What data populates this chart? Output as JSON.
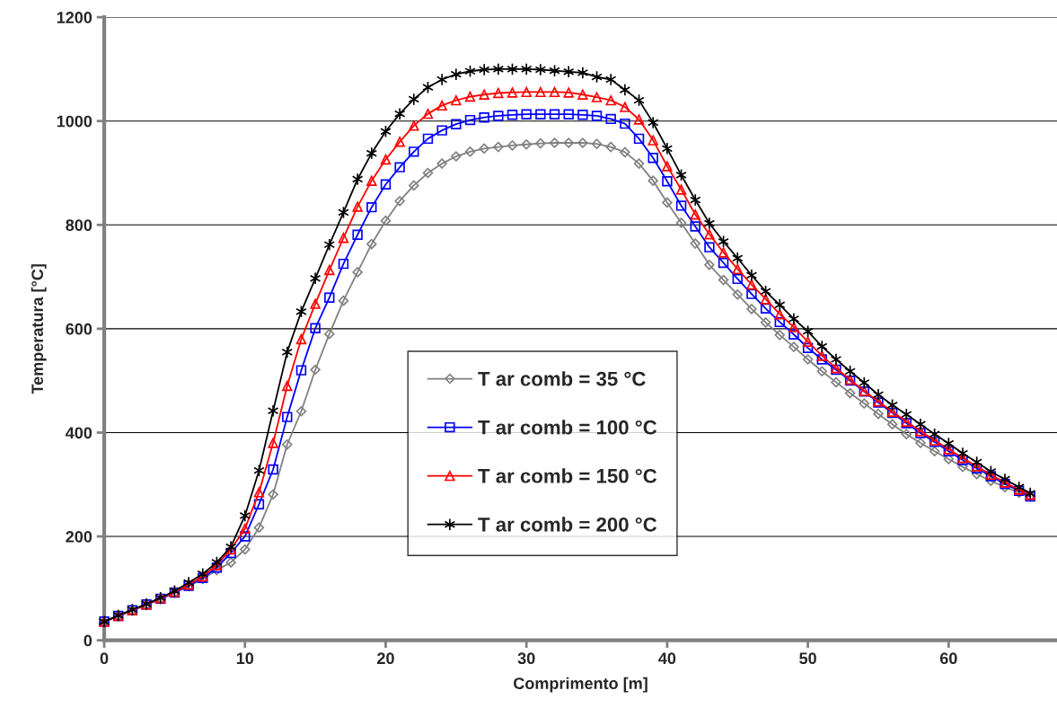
{
  "chart_data": {
    "type": "line",
    "xlabel": "Comprimento [m]",
    "ylabel": "Temperatura [°C]",
    "x": [
      0,
      1,
      2,
      3,
      4,
      5,
      6,
      7,
      8,
      9,
      10,
      11,
      12,
      13,
      14,
      15,
      16,
      17,
      18,
      19,
      20,
      21,
      22,
      23,
      24,
      25,
      26,
      27,
      28,
      29,
      30,
      31,
      32,
      33,
      34,
      35,
      36,
      37,
      38,
      39,
      40,
      41,
      42,
      43,
      44,
      45,
      46,
      47,
      48,
      49,
      50,
      51,
      52,
      53,
      54,
      55,
      56,
      57,
      58,
      59,
      60,
      61,
      62,
      63,
      64,
      65,
      65.8
    ],
    "series": [
      {
        "name": "T ar comb = 35 °C",
        "color": "#808080",
        "marker": "diamond",
        "values": [
          35,
          47,
          57,
          68,
          79,
          91,
          104,
          118,
          135,
          150,
          175,
          217,
          281,
          377,
          441,
          521,
          590,
          654,
          709,
          763,
          808,
          846,
          876,
          900,
          918,
          932,
          941,
          947,
          950,
          953,
          955,
          957,
          958,
          958,
          958,
          956,
          950,
          940,
          918,
          885,
          843,
          804,
          764,
          723,
          694,
          666,
          638,
          612,
          588,
          565,
          541,
          518,
          497,
          476,
          456,
          436,
          416,
          397,
          380,
          364,
          349,
          334,
          320,
          307,
          295,
          284,
          277
        ]
      },
      {
        "name": "T ar comb = 100 °C",
        "color": "#0000ff",
        "marker": "square",
        "values": [
          36,
          47,
          58,
          69,
          80,
          92,
          105,
          120,
          140,
          168,
          200,
          262,
          329,
          430,
          520,
          601,
          660,
          725,
          781,
          834,
          878,
          911,
          941,
          966,
          982,
          994,
          1002,
          1007,
          1010,
          1012,
          1013,
          1013,
          1013,
          1013,
          1012,
          1010,
          1004,
          995,
          966,
          929,
          884,
          837,
          797,
          757,
          727,
          696,
          667,
          639,
          613,
          589,
          563,
          541,
          521,
          500,
          479,
          458,
          438,
          418,
          399,
          382,
          364,
          347,
          331,
          316,
          301,
          288,
          277
        ]
      },
      {
        "name": "T ar comb = 150 °C",
        "color": "#ff0000",
        "marker": "triangle",
        "values": [
          36,
          47,
          58,
          69,
          81,
          93,
          107,
          123,
          145,
          175,
          215,
          285,
          380,
          490,
          580,
          648,
          713,
          775,
          835,
          885,
          926,
          960,
          991,
          1014,
          1030,
          1040,
          1047,
          1051,
          1054,
          1055,
          1056,
          1056,
          1056,
          1055,
          1051,
          1046,
          1040,
          1027,
          1003,
          963,
          913,
          868,
          820,
          782,
          747,
          715,
          685,
          657,
          628,
          603,
          575,
          548,
          524,
          502,
          480,
          460,
          440,
          421,
          403,
          385,
          368,
          351,
          335,
          319,
          304,
          290,
          280
        ]
      },
      {
        "name": "T ar comb = 200 °C",
        "color": "#000000",
        "marker": "cross",
        "values": [
          36,
          48,
          59,
          70,
          82,
          95,
          111,
          128,
          150,
          180,
          240,
          327,
          442,
          555,
          633,
          697,
          762,
          824,
          888,
          938,
          980,
          1014,
          1042,
          1065,
          1080,
          1090,
          1096,
          1099,
          1100,
          1100,
          1100,
          1099,
          1097,
          1095,
          1093,
          1085,
          1080,
          1060,
          1040,
          997,
          947,
          896,
          848,
          803,
          768,
          736,
          703,
          672,
          646,
          619,
          595,
          566,
          541,
          518,
          496,
          473,
          453,
          435,
          416,
          397,
          379,
          360,
          343,
          325,
          310,
          295,
          283
        ]
      }
    ],
    "xlim": [
      0,
      67.7
    ],
    "xticks": [
      0,
      10,
      20,
      30,
      40,
      50,
      60
    ],
    "ylim": [
      0,
      1200
    ],
    "yticks": [
      0,
      200,
      400,
      600,
      800,
      1000,
      1200
    ],
    "grid": "y",
    "legend": "bottom",
    "line_style": "solid"
  }
}
